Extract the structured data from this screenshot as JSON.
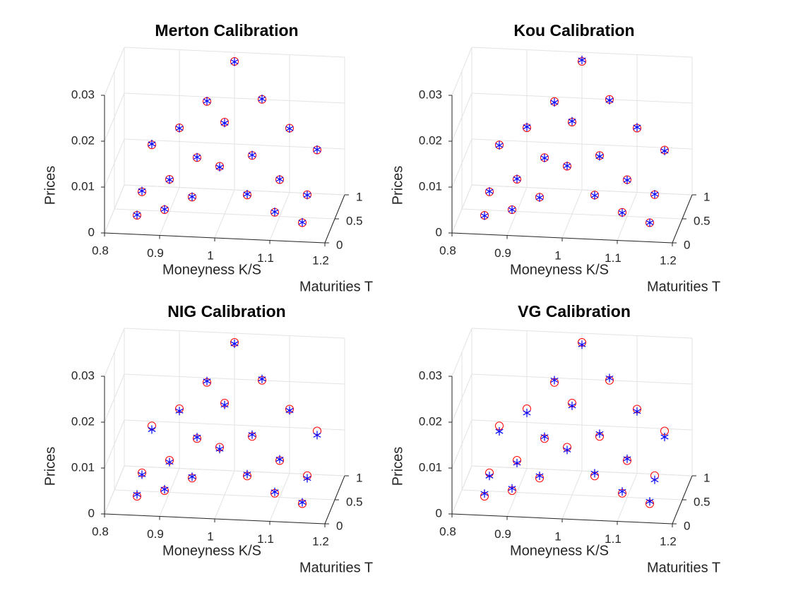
{
  "chart_data": [
    {
      "type": "scatter3d",
      "title": "Merton Calibration",
      "xlabel": "Moneyness K/S",
      "ylabel": "Maturities T",
      "zlabel": "Prices",
      "xlim": [
        0.8,
        1.2
      ],
      "ylim": [
        0,
        1
      ],
      "zlim": [
        0,
        0.03
      ],
      "xticks": [
        0.8,
        0.9,
        1,
        1.1,
        1.2
      ],
      "yticks": [
        0,
        0.5,
        1
      ],
      "zticks": [
        0,
        0.01,
        0.02,
        0.03
      ],
      "grid": true,
      "x": [
        0.85,
        0.9,
        0.95,
        1,
        1.05,
        1.1,
        1.15,
        0.85,
        0.9,
        0.95,
        1,
        1.05,
        1.1,
        1.15,
        0.85,
        0.9,
        0.95,
        1,
        1.05,
        1.1,
        1.15
      ],
      "y": [
        0.25,
        0.25,
        0.25,
        0.25,
        0.25,
        0.25,
        0.25,
        0.5,
        0.5,
        0.5,
        0.5,
        0.5,
        0.5,
        0.5,
        1,
        1,
        1,
        1,
        1,
        1,
        1
      ],
      "series": [
        {
          "color": "#ff0000",
          "marker": "o",
          "values": [
            0.0015,
            0.003,
            0.006,
            0.013,
            0.007,
            0.0035,
            0.0015,
            0.004,
            0.007,
            0.012,
            0.02,
            0.013,
            0.008,
            0.005,
            0.009,
            0.013,
            0.019,
            0.028,
            0.02,
            0.014,
            0.0095
          ]
        },
        {
          "color": "#0000ff",
          "marker": "*",
          "values": [
            0.0016,
            0.0031,
            0.0061,
            0.0128,
            0.0072,
            0.0036,
            0.0016,
            0.0042,
            0.0069,
            0.0121,
            0.0198,
            0.0131,
            0.0081,
            0.0049,
            0.0092,
            0.0129,
            0.0191,
            0.0279,
            0.0201,
            0.0139,
            0.0096
          ]
        }
      ]
    },
    {
      "type": "scatter3d",
      "title": "Kou Calibration",
      "xlabel": "Moneyness K/S",
      "ylabel": "Maturities T",
      "zlabel": "Prices",
      "xlim": [
        0.8,
        1.2
      ],
      "ylim": [
        0,
        1
      ],
      "zlim": [
        0,
        0.03
      ],
      "xticks": [
        0.8,
        0.9,
        1,
        1.1,
        1.2
      ],
      "yticks": [
        0,
        0.5,
        1
      ],
      "zticks": [
        0,
        0.01,
        0.02,
        0.03
      ],
      "grid": true,
      "x": [
        0.85,
        0.9,
        0.95,
        1,
        1.05,
        1.1,
        1.15,
        0.85,
        0.9,
        0.95,
        1,
        1.05,
        1.1,
        1.15,
        0.85,
        0.9,
        0.95,
        1,
        1.05,
        1.1,
        1.15
      ],
      "y": [
        0.25,
        0.25,
        0.25,
        0.25,
        0.25,
        0.25,
        0.25,
        0.5,
        0.5,
        0.5,
        0.5,
        0.5,
        0.5,
        0.5,
        1,
        1,
        1,
        1,
        1,
        1,
        1
      ],
      "series": [
        {
          "color": "#ff0000",
          "marker": "o",
          "values": [
            0.0015,
            0.003,
            0.006,
            0.013,
            0.007,
            0.0035,
            0.0015,
            0.004,
            0.007,
            0.012,
            0.02,
            0.013,
            0.008,
            0.005,
            0.009,
            0.013,
            0.019,
            0.028,
            0.02,
            0.014,
            0.0095
          ]
        },
        {
          "color": "#0000ff",
          "marker": "*",
          "values": [
            0.0014,
            0.003,
            0.0059,
            0.0131,
            0.0069,
            0.0034,
            0.0015,
            0.0041,
            0.0071,
            0.0119,
            0.0202,
            0.0128,
            0.0079,
            0.0051,
            0.0089,
            0.0132,
            0.0188,
            0.0283,
            0.0198,
            0.0142,
            0.0093
          ]
        }
      ]
    },
    {
      "type": "scatter3d",
      "title": "NIG Calibration",
      "xlabel": "Moneyness K/S",
      "ylabel": "Maturities T",
      "zlabel": "Prices",
      "xlim": [
        0.8,
        1.2
      ],
      "ylim": [
        0,
        1
      ],
      "zlim": [
        0,
        0.03
      ],
      "xticks": [
        0.8,
        0.9,
        1,
        1.1,
        1.2
      ],
      "yticks": [
        0,
        0.5,
        1
      ],
      "zticks": [
        0,
        0.01,
        0.02,
        0.03
      ],
      "grid": true,
      "x": [
        0.85,
        0.9,
        0.95,
        1,
        1.05,
        1.1,
        1.15,
        0.85,
        0.9,
        0.95,
        1,
        1.05,
        1.1,
        1.15,
        0.85,
        0.9,
        0.95,
        1,
        1.05,
        1.1,
        1.15
      ],
      "y": [
        0.25,
        0.25,
        0.25,
        0.25,
        0.25,
        0.25,
        0.25,
        0.5,
        0.5,
        0.5,
        0.5,
        0.5,
        0.5,
        0.5,
        1,
        1,
        1,
        1,
        1,
        1,
        1
      ],
      "series": [
        {
          "color": "#ff0000",
          "marker": "o",
          "values": [
            0.0015,
            0.003,
            0.006,
            0.013,
            0.007,
            0.0035,
            0.0015,
            0.004,
            0.007,
            0.012,
            0.02,
            0.013,
            0.008,
            0.005,
            0.009,
            0.013,
            0.019,
            0.028,
            0.02,
            0.014,
            0.0095
          ]
        },
        {
          "color": "#0000ff",
          "marker": "*",
          "values": [
            0.0019,
            0.0033,
            0.0063,
            0.0126,
            0.0074,
            0.0038,
            0.0018,
            0.0036,
            0.0066,
            0.0123,
            0.0196,
            0.0134,
            0.0083,
            0.0044,
            0.0082,
            0.0125,
            0.0193,
            0.0277,
            0.0203,
            0.0137,
            0.0086
          ]
        }
      ]
    },
    {
      "type": "scatter3d",
      "title": "VG Calibration",
      "xlabel": "Moneyness K/S",
      "ylabel": "Maturities T",
      "zlabel": "Prices",
      "xlim": [
        0.8,
        1.2
      ],
      "ylim": [
        0,
        1
      ],
      "zlim": [
        0,
        0.03
      ],
      "xticks": [
        0.8,
        0.9,
        1,
        1.1,
        1.2
      ],
      "yticks": [
        0,
        0.5,
        1
      ],
      "zticks": [
        0,
        0.01,
        0.02,
        0.03
      ],
      "grid": true,
      "x": [
        0.85,
        0.9,
        0.95,
        1,
        1.05,
        1.1,
        1.15,
        0.85,
        0.9,
        0.95,
        1,
        1.05,
        1.1,
        1.15,
        0.85,
        0.9,
        0.95,
        1,
        1.05,
        1.1,
        1.15
      ],
      "y": [
        0.25,
        0.25,
        0.25,
        0.25,
        0.25,
        0.25,
        0.25,
        0.5,
        0.5,
        0.5,
        0.5,
        0.5,
        0.5,
        0.5,
        1,
        1,
        1,
        1,
        1,
        1,
        1
      ],
      "series": [
        {
          "color": "#ff0000",
          "marker": "o",
          "values": [
            0.0015,
            0.003,
            0.006,
            0.013,
            0.007,
            0.0035,
            0.0015,
            0.004,
            0.007,
            0.012,
            0.02,
            0.013,
            0.008,
            0.005,
            0.009,
            0.013,
            0.019,
            0.028,
            0.02,
            0.014,
            0.0095
          ]
        },
        {
          "color": "#0000ff",
          "marker": "*",
          "values": [
            0.0021,
            0.0035,
            0.0065,
            0.0124,
            0.0076,
            0.0039,
            0.002,
            0.0033,
            0.0064,
            0.0124,
            0.0194,
            0.0136,
            0.0084,
            0.0041,
            0.0078,
            0.0121,
            0.0195,
            0.0275,
            0.0205,
            0.0135,
            0.0082
          ]
        }
      ]
    }
  ]
}
